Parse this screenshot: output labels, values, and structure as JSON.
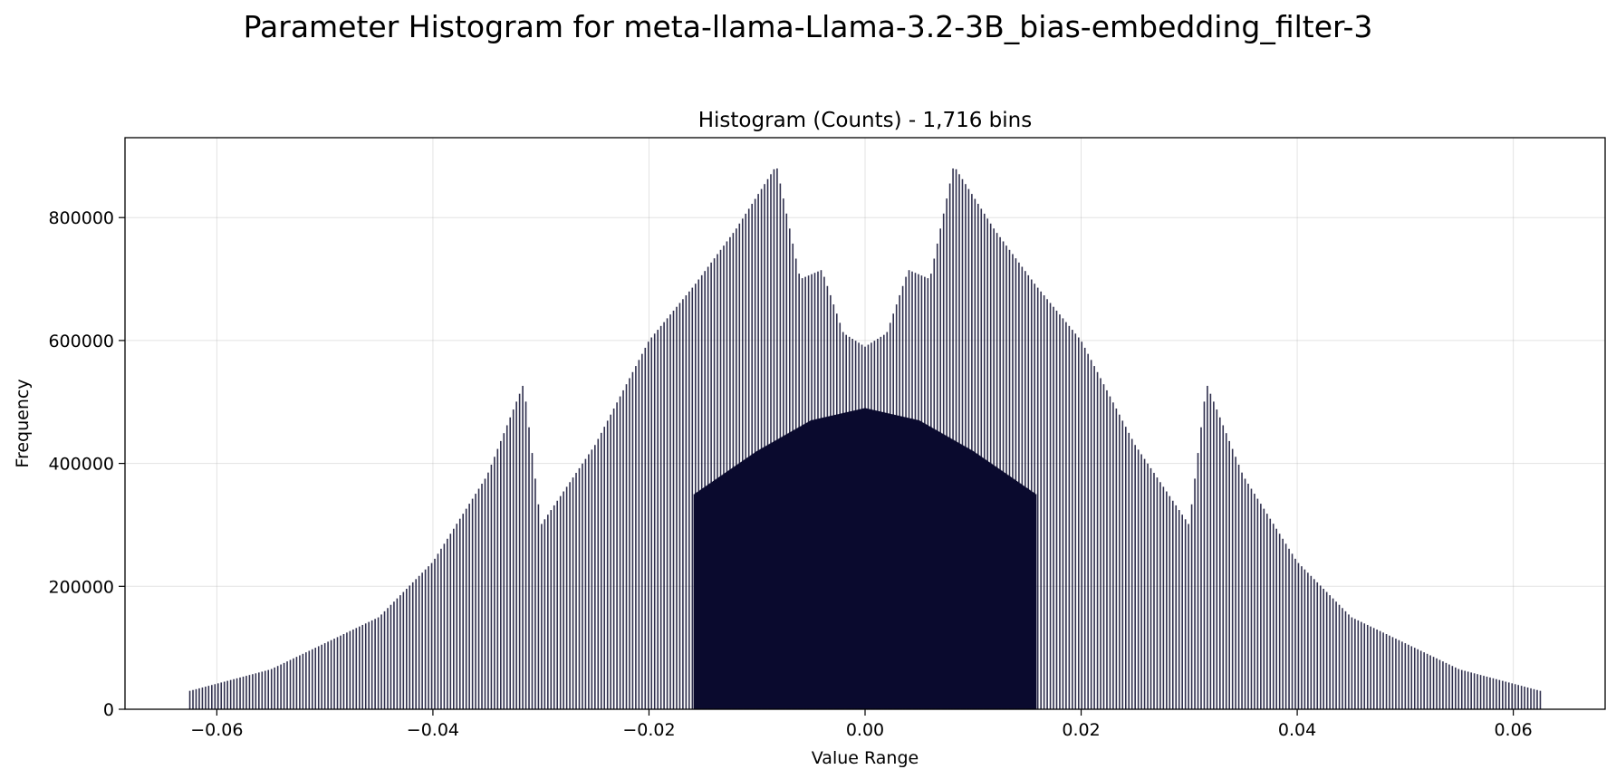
{
  "figure": {
    "suptitle": "Parameter Histogram for meta-llama-Llama-3.2-3B_bias-embedding_filter-3"
  },
  "chart_data": {
    "type": "bar",
    "title": "Histogram (Counts) - 1,716 bins",
    "xlabel": "Value Range",
    "ylabel": "Frequency",
    "xlim": [
      -0.0685,
      0.0685
    ],
    "ylim": [
      0,
      930000
    ],
    "xticks": [
      -0.06,
      -0.04,
      -0.02,
      0.0,
      0.02,
      0.04,
      0.06
    ],
    "xtick_labels": [
      "−0.06",
      "−0.04",
      "−0.02",
      "0.00",
      "0.02",
      "0.04",
      "0.06"
    ],
    "yticks": [
      0,
      200000,
      400000,
      600000,
      800000
    ],
    "ytick_labels": [
      "0",
      "200000",
      "400000",
      "600000",
      "800000"
    ],
    "grid": true,
    "bar_color": "#0a0a2e",
    "bin_range": [
      -0.0625,
      0.0625
    ],
    "bin_count": 1716,
    "envelope": {
      "description_points_x": [
        -0.0625,
        -0.055,
        -0.045,
        -0.04,
        -0.035,
        -0.0316,
        -0.03,
        -0.025,
        -0.02,
        -0.0158,
        -0.012,
        -0.0082,
        -0.006,
        -0.004,
        -0.002,
        0.0,
        0.002,
        0.004,
        0.006,
        0.0082,
        0.012,
        0.0158,
        0.02,
        0.025,
        0.03,
        0.0316,
        0.035,
        0.04,
        0.045,
        0.055,
        0.0625
      ],
      "description_points_y": [
        30000,
        65000,
        150000,
        240000,
        380000,
        530000,
        300000,
        430000,
        600000,
        690000,
        780000,
        885000,
        700000,
        715000,
        612000,
        590000,
        612000,
        715000,
        700000,
        885000,
        780000,
        690000,
        600000,
        430000,
        300000,
        530000,
        380000,
        240000,
        150000,
        65000,
        30000
      ]
    },
    "dense_fill": {
      "x": [
        -0.0158,
        -0.01,
        -0.005,
        0.0,
        0.005,
        0.01,
        0.0158
      ],
      "y": [
        350000,
        420000,
        470000,
        490000,
        470000,
        420000,
        350000
      ]
    }
  }
}
